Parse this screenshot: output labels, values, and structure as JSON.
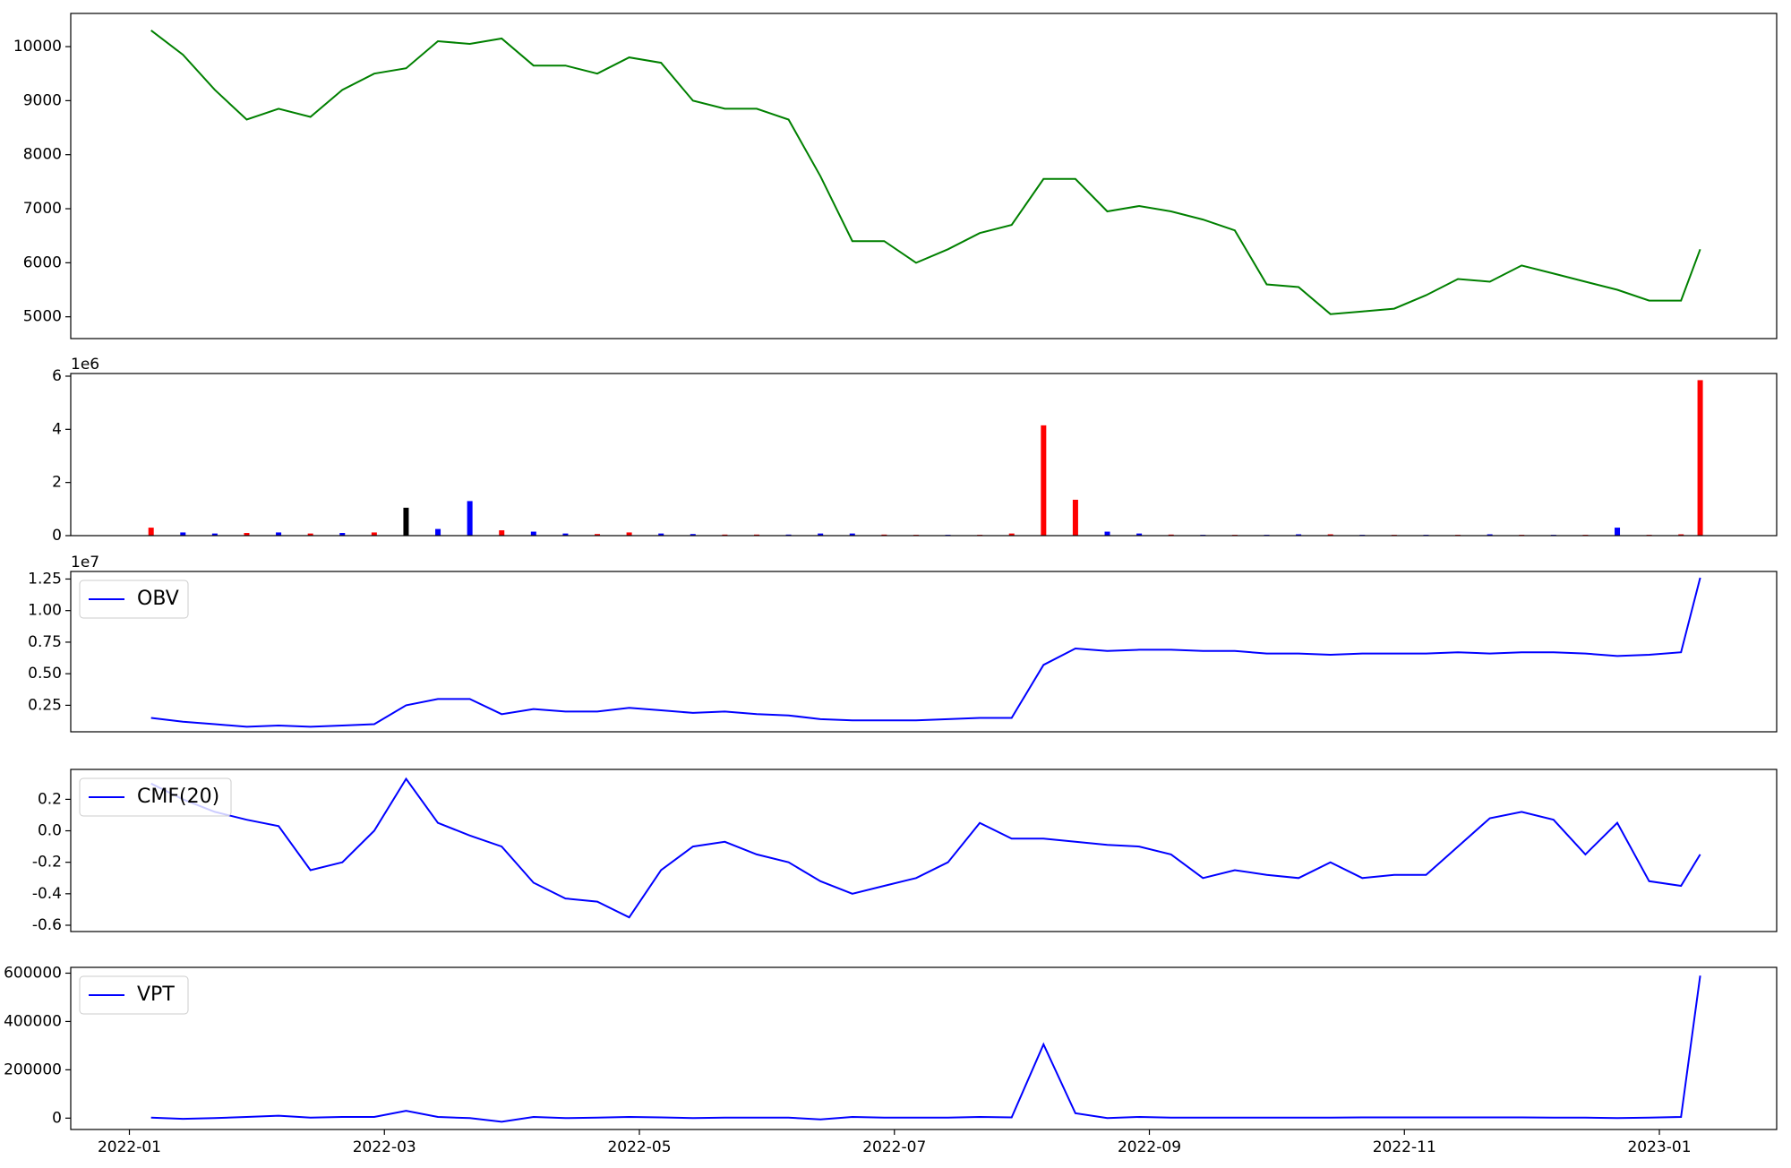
{
  "chart_data": [
    {
      "type": "line",
      "color": "#008000",
      "x": [
        0.17,
        0.42,
        0.67,
        0.92,
        1.17,
        1.42,
        1.67,
        1.92,
        2.17,
        2.42,
        2.67,
        2.92,
        3.17,
        3.42,
        3.67,
        3.92,
        4.17,
        4.42,
        4.67,
        4.92,
        5.17,
        5.42,
        5.67,
        5.92,
        6.17,
        6.42,
        6.67,
        6.92,
        7.17,
        7.42,
        7.67,
        7.92,
        8.17,
        8.42,
        8.67,
        8.92,
        9.17,
        9.42,
        9.67,
        9.92,
        10.17,
        10.42,
        10.67,
        10.92,
        11.17,
        11.42,
        11.67,
        11.92,
        12.17,
        12.32
      ],
      "values": [
        10300,
        9850,
        9200,
        8650,
        8850,
        8700,
        9200,
        9500,
        9600,
        10100,
        10050,
        10150,
        9650,
        9650,
        9500,
        9800,
        9700,
        9000,
        8850,
        8850,
        8650,
        7600,
        6400,
        6400,
        6000,
        6250,
        6550,
        6700,
        7550,
        7550,
        6950,
        7050,
        6950,
        6800,
        6600,
        5600,
        5550,
        5050,
        5100,
        5150,
        5400,
        5700,
        5650,
        5950,
        5800,
        5650,
        5500,
        5300,
        5300,
        6250
      ],
      "xlim": [
        -0.46,
        12.92
      ],
      "ylim": [
        4597,
        10614
      ],
      "yticks": [
        5000,
        6000,
        7000,
        8000,
        9000,
        10000
      ]
    },
    {
      "type": "bar",
      "offset_label": "1e6",
      "x": [
        0.17,
        0.42,
        0.67,
        0.92,
        1.17,
        1.42,
        1.67,
        1.92,
        2.17,
        2.42,
        2.67,
        2.92,
        3.17,
        3.42,
        3.67,
        3.92,
        4.17,
        4.42,
        4.67,
        4.92,
        5.17,
        5.42,
        5.67,
        5.92,
        6.17,
        6.42,
        6.67,
        6.92,
        7.17,
        7.42,
        7.67,
        7.92,
        8.17,
        8.42,
        8.67,
        8.92,
        9.17,
        9.42,
        9.67,
        9.92,
        10.17,
        10.42,
        10.67,
        10.92,
        11.17,
        11.42,
        11.67,
        11.92,
        12.17,
        12.32
      ],
      "values": [
        0.3,
        0.12,
        0.08,
        0.1,
        0.12,
        0.08,
        0.1,
        0.12,
        1.05,
        0.25,
        1.3,
        0.2,
        0.15,
        0.08,
        0.06,
        0.12,
        0.08,
        0.06,
        0.04,
        0.04,
        0.04,
        0.08,
        0.08,
        0.04,
        0.03,
        0.03,
        0.03,
        0.08,
        4.15,
        1.35,
        0.15,
        0.08,
        0.04,
        0.03,
        0.03,
        0.03,
        0.05,
        0.05,
        0.03,
        0.03,
        0.03,
        0.03,
        0.05,
        0.03,
        0.03,
        0.03,
        0.3,
        0.03,
        0.05,
        5.85
      ],
      "colors": [
        "#ff0000",
        "#0000ff",
        "#0000ff",
        "#ff0000",
        "#0000ff",
        "#ff0000",
        "#0000ff",
        "#ff0000",
        "#000000",
        "#0000ff",
        "#0000ff",
        "#ff0000",
        "#0000ff",
        "#0000ff",
        "#ff0000",
        "#ff0000",
        "#0000ff",
        "#0000ff",
        "#ff0000",
        "#ff0000",
        "#0000ff",
        "#0000ff",
        "#0000ff",
        "#ff0000",
        "#ff0000",
        "#0000ff",
        "#ff0000",
        "#ff0000",
        "#ff0000",
        "#ff0000",
        "#0000ff",
        "#0000ff",
        "#ff0000",
        "#0000ff",
        "#ff0000",
        "#0000ff",
        "#0000ff",
        "#ff0000",
        "#0000ff",
        "#ff0000",
        "#0000ff",
        "#ff0000",
        "#0000ff",
        "#ff0000",
        "#0000ff",
        "#ff0000",
        "#0000ff",
        "#ff0000",
        "#ff0000",
        "#ff0000"
      ],
      "xlim": [
        -0.46,
        12.92
      ],
      "ylim": [
        0,
        6.1
      ],
      "yticks": [
        0,
        2,
        4,
        6
      ]
    },
    {
      "type": "line",
      "offset_label": "1e7",
      "x": [
        0.17,
        0.42,
        0.67,
        0.92,
        1.17,
        1.42,
        1.67,
        1.92,
        2.17,
        2.42,
        2.67,
        2.92,
        3.17,
        3.42,
        3.67,
        3.92,
        4.17,
        4.42,
        4.67,
        4.92,
        5.17,
        5.42,
        5.67,
        5.92,
        6.17,
        6.42,
        6.67,
        6.92,
        7.17,
        7.42,
        7.67,
        7.92,
        8.17,
        8.42,
        8.67,
        8.92,
        9.17,
        9.42,
        9.67,
        9.92,
        10.17,
        10.42,
        10.67,
        10.92,
        11.17,
        11.42,
        11.67,
        11.92,
        12.17,
        12.32
      ],
      "series": [
        {
          "name": "OBV",
          "color": "#0000ff",
          "values": [
            0.15,
            0.12,
            0.1,
            0.08,
            0.09,
            0.08,
            0.09,
            0.1,
            0.25,
            0.3,
            0.3,
            0.18,
            0.22,
            0.2,
            0.2,
            0.23,
            0.21,
            0.19,
            0.2,
            0.18,
            0.17,
            0.14,
            0.13,
            0.13,
            0.13,
            0.14,
            0.15,
            0.15,
            0.57,
            0.7,
            0.68,
            0.69,
            0.69,
            0.68,
            0.68,
            0.66,
            0.66,
            0.65,
            0.66,
            0.66,
            0.66,
            0.67,
            0.66,
            0.67,
            0.67,
            0.66,
            0.64,
            0.65,
            0.67,
            1.26
          ]
        }
      ],
      "xlim": [
        -0.46,
        12.92
      ],
      "ylim": [
        0.04,
        1.31
      ],
      "yticks": [
        0.25,
        {
          "value": 0.5,
          "label": "0.50"
        },
        0.75,
        {
          "value": 1,
          "label": "1.00"
        },
        1.25
      ]
    },
    {
      "type": "line",
      "x": [
        0.17,
        0.42,
        0.67,
        0.92,
        1.17,
        1.42,
        1.67,
        1.92,
        2.17,
        2.42,
        2.67,
        2.92,
        3.17,
        3.42,
        3.67,
        3.92,
        4.17,
        4.42,
        4.67,
        4.92,
        5.17,
        5.42,
        5.67,
        5.92,
        6.17,
        6.42,
        6.67,
        6.92,
        7.17,
        7.42,
        7.67,
        7.92,
        8.17,
        8.42,
        8.67,
        8.92,
        9.17,
        9.42,
        9.67,
        9.92,
        10.17,
        10.42,
        10.67,
        10.92,
        11.17,
        11.42,
        11.67,
        11.92,
        12.17,
        12.32
      ],
      "series": [
        {
          "name": "CMF(20)",
          "color": "#0000ff",
          "values": [
            0.3,
            0.2,
            0.12,
            0.07,
            0.03,
            -0.25,
            -0.2,
            0.0,
            0.33,
            0.05,
            -0.03,
            -0.1,
            -0.33,
            -0.43,
            -0.45,
            -0.55,
            -0.25,
            -0.1,
            -0.07,
            -0.15,
            -0.2,
            -0.32,
            -0.4,
            -0.35,
            -0.3,
            -0.2,
            0.05,
            -0.05,
            -0.05,
            -0.07,
            -0.09,
            -0.1,
            -0.15,
            -0.3,
            -0.25,
            -0.28,
            -0.3,
            -0.2,
            -0.3,
            -0.28,
            -0.28,
            -0.1,
            0.08,
            0.12,
            0.07,
            -0.15,
            0.05,
            -0.32,
            -0.35,
            -0.15
          ]
        }
      ],
      "xlim": [
        -0.46,
        12.92
      ],
      "ylim": [
        -0.64,
        0.39
      ],
      "yticks": [
        {
          "value": -0.6,
          "label": "-0.6"
        },
        {
          "value": -0.4,
          "label": "-0.4"
        },
        {
          "value": -0.2,
          "label": "-0.2"
        },
        {
          "value": 0,
          "label": "0.0"
        },
        0.2
      ]
    },
    {
      "type": "line",
      "x": [
        0.17,
        0.42,
        0.67,
        0.92,
        1.17,
        1.42,
        1.67,
        1.92,
        2.17,
        2.42,
        2.67,
        2.92,
        3.17,
        3.42,
        3.67,
        3.92,
        4.17,
        4.42,
        4.67,
        4.92,
        5.17,
        5.42,
        5.67,
        5.92,
        6.17,
        6.42,
        6.67,
        6.92,
        7.17,
        7.42,
        7.67,
        7.92,
        8.17,
        8.42,
        8.67,
        8.92,
        9.17,
        9.42,
        9.67,
        9.92,
        10.17,
        10.42,
        10.67,
        10.92,
        11.17,
        11.42,
        11.67,
        11.92,
        12.17,
        12.32
      ],
      "series": [
        {
          "name": "VPT",
          "color": "#0000ff",
          "values": [
            2000,
            -3000,
            0,
            5000,
            10000,
            2000,
            5000,
            5000,
            30000,
            5000,
            0,
            -15000,
            5000,
            0,
            2000,
            5000,
            3000,
            0,
            2000,
            2000,
            2000,
            -5000,
            5000,
            2000,
            2000,
            2000,
            5000,
            3000,
            305000,
            20000,
            0,
            5000,
            2000,
            2000,
            2000,
            2000,
            2000,
            2000,
            3000,
            3000,
            3000,
            3000,
            3000,
            3000,
            2000,
            2000,
            0,
            2000,
            5000,
            590000
          ]
        }
      ],
      "xlim": [
        -0.46,
        12.92
      ],
      "ylim": [
        -47000,
        624000
      ],
      "yticks": [
        0,
        200000,
        400000,
        600000
      ],
      "xticks": [
        {
          "value": 0,
          "label": "2022-01"
        },
        {
          "value": 2,
          "label": "2022-03"
        },
        {
          "value": 4,
          "label": "2022-05"
        },
        {
          "value": 6,
          "label": "2022-07"
        },
        {
          "value": 8,
          "label": "2022-09"
        },
        {
          "value": 10,
          "label": "2022-11"
        },
        {
          "value": 12,
          "label": "2023-01"
        }
      ]
    }
  ]
}
